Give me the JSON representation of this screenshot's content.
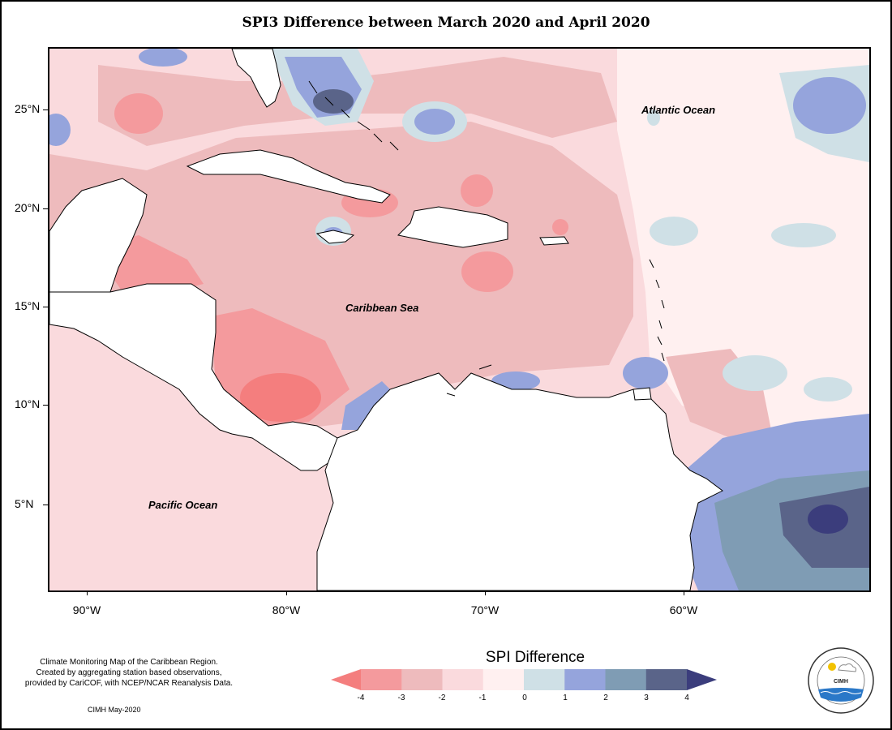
{
  "title": "SPI3 Difference between March 2020 and April 2020",
  "map_labels": {
    "atlantic": "Atlantic Ocean",
    "caribbean": "Caribbean Sea",
    "pacific": "Pacific Ocean"
  },
  "lat_ticks": [
    "25°N",
    "20°N",
    "15°N",
    "10°N",
    "5°N"
  ],
  "lon_ticks": [
    "90°W",
    "80°W",
    "70°W",
    "60°W"
  ],
  "legend": {
    "title": "SPI Difference",
    "ticks": [
      "-4",
      "-3",
      "-2",
      "-1",
      "0",
      "1",
      "2",
      "3",
      "4"
    ],
    "colors": [
      "#f47e7e",
      "#f49a9d",
      "#eebbbd",
      "#fadadd",
      "#fff0f0",
      "#cfe0e6",
      "#95a4dc",
      "#7f9cb4",
      "#5a6489",
      "#3b3d7c"
    ]
  },
  "notes": {
    "line1": "Climate Monitoring Map of the Caribbean Region.",
    "line2": "Created by aggregating station based observations,",
    "line3": "provided by CariCOF, with NCEP/NCAR Reanalysis Data.",
    "credit": "CIMH May-2020"
  },
  "logo": {
    "ring_text": "Caribbean Institute for Meteorology and Hydrology",
    "center_text": "CIMH"
  }
}
